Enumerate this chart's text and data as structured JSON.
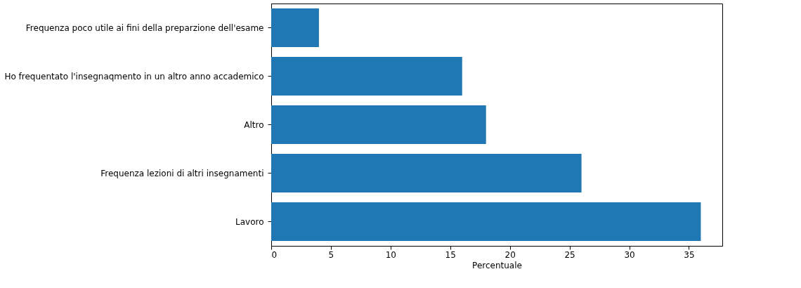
{
  "chart_data": {
    "type": "bar",
    "orientation": "horizontal",
    "xlabel": "Percentuale",
    "categories": [
      "Frequenza poco utile ai fini della preparzione dell'esame",
      "Ho frequentato l'insegnaqmento in un altro anno accademico",
      "Altro",
      "Frequenza lezioni di altri insegnamenti",
      "Lavoro"
    ],
    "values": [
      4,
      16,
      18,
      26,
      36
    ],
    "color": "#1f77b4",
    "xlim": [
      0,
      37.8
    ],
    "xticks": [
      0,
      5,
      10,
      15,
      20,
      25,
      30,
      35
    ],
    "grid": false
  }
}
